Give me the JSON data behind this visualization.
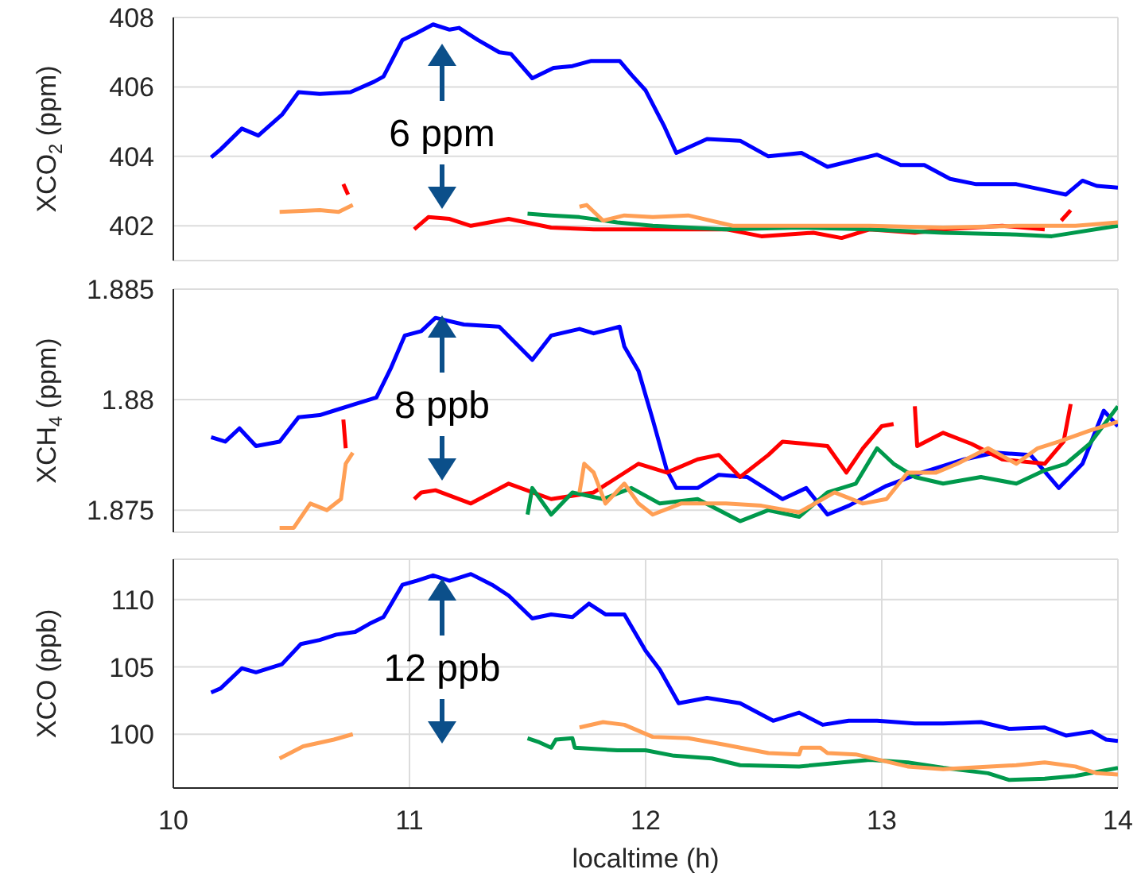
{
  "chart_data": [
    {
      "type": "line",
      "ylabel": "XCO$_{2}$ (ppm)",
      "xlim": [
        10,
        14
      ],
      "xticks": [
        10,
        11,
        12,
        13,
        14
      ],
      "ylim": [
        401,
        408
      ],
      "yticks": [
        402,
        404,
        406,
        408
      ],
      "grid": true,
      "tick_labels": "y",
      "annotations": [
        "6 ppm"
      ],
      "series": [
        {
          "color": "#0000ff",
          "x": [
            10.16,
            10.2,
            10.29,
            10.36,
            10.46,
            10.53,
            10.62,
            10.75,
            10.85,
            10.89,
            10.97,
            11.03,
            11.1,
            11.17,
            11.21,
            11.29,
            11.38,
            11.43,
            11.52,
            11.61,
            11.69,
            11.77,
            11.89,
            11.94,
            12.0,
            12.08,
            12.13,
            12.26,
            12.4,
            12.52,
            12.66,
            12.77,
            12.98,
            13.08,
            13.18,
            13.29,
            13.4,
            13.57,
            13.71,
            13.78,
            13.85,
            13.91,
            14.0
          ],
          "values": [
            403.97,
            404.2,
            404.8,
            404.6,
            405.2,
            405.85,
            405.8,
            405.85,
            406.15,
            406.3,
            407.35,
            407.55,
            407.8,
            407.65,
            407.7,
            407.35,
            407.0,
            406.95,
            406.25,
            406.55,
            406.6,
            406.75,
            406.75,
            406.35,
            405.9,
            404.85,
            404.1,
            404.5,
            404.45,
            404.0,
            404.1,
            403.7,
            404.05,
            403.75,
            403.75,
            403.35,
            403.2,
            403.2,
            403.0,
            402.9,
            403.3,
            403.15,
            403.1
          ]
        },
        {
          "color": "#ff0000",
          "x": [
            10.72,
            10.74,
            10.9,
            11.02,
            11.08,
            11.17,
            11.26,
            11.42,
            11.6,
            11.78,
            12.03,
            12.34,
            12.49,
            12.71,
            12.83,
            12.95,
            13.14,
            13.26,
            13.51,
            13.69,
            13.73,
            13.76,
            13.8
          ],
          "values": [
            403.2,
            402.9,
            null,
            401.9,
            402.25,
            402.2,
            402.0,
            402.2,
            401.95,
            401.9,
            401.9,
            401.9,
            401.7,
            401.8,
            401.65,
            401.9,
            401.8,
            401.9,
            402.0,
            401.9,
            null,
            402.15,
            402.45
          ]
        },
        {
          "color": "#00994c",
          "x": [
            11.5,
            11.6,
            11.72,
            11.88,
            12.03,
            12.34,
            12.65,
            12.95,
            13.26,
            13.57,
            13.72,
            14.0
          ],
          "values": [
            402.35,
            402.3,
            402.25,
            402.1,
            402.0,
            401.9,
            401.95,
            401.9,
            401.8,
            401.75,
            401.7,
            402.0
          ]
        },
        {
          "color": "#ff9f55",
          "x": [
            10.45,
            10.62,
            10.7,
            10.76,
            11.2,
            11.72,
            11.75,
            11.82,
            11.91,
            12.03,
            12.18,
            12.37,
            12.65,
            12.95,
            13.26,
            13.57,
            13.82,
            14.0
          ],
          "values": [
            402.4,
            402.45,
            402.4,
            402.6,
            null,
            402.55,
            402.6,
            402.15,
            402.3,
            402.25,
            402.3,
            402.0,
            402.0,
            402.0,
            401.95,
            402.0,
            402.0,
            402.1
          ]
        }
      ]
    },
    {
      "type": "line",
      "ylabel": "XCH$_{4}$ (ppm)",
      "xlim": [
        10,
        14
      ],
      "xticks": [
        10,
        11,
        12,
        13,
        14
      ],
      "ylim": [
        1.874,
        1.885
      ],
      "yticks": [
        1.875,
        1.88,
        1.885
      ],
      "grid": true,
      "tick_labels": "y",
      "annotations": [
        "8 ppb"
      ],
      "series": [
        {
          "color": "#0000ff",
          "x": [
            10.16,
            10.22,
            10.28,
            10.35,
            10.45,
            10.53,
            10.62,
            10.68,
            10.77,
            10.86,
            10.92,
            10.98,
            11.05,
            11.11,
            11.23,
            11.38,
            11.52,
            11.6,
            11.72,
            11.78,
            11.89,
            11.91,
            11.97,
            12.03,
            12.09,
            12.13,
            12.22,
            12.31,
            12.43,
            12.58,
            12.68,
            12.77,
            12.86,
            13.02,
            13.17,
            13.35,
            13.48,
            13.63,
            13.75,
            13.85,
            13.94,
            14.0
          ],
          "values": [
            1.8783,
            1.8781,
            1.8787,
            1.8779,
            1.8781,
            1.8792,
            1.8793,
            1.8795,
            1.8798,
            1.8801,
            1.8814,
            1.8829,
            1.8831,
            1.8837,
            1.8834,
            1.8833,
            1.8818,
            1.8829,
            1.8832,
            1.883,
            1.8833,
            1.8824,
            1.8813,
            1.8791,
            1.8768,
            1.876,
            1.876,
            1.8766,
            1.8765,
            1.8755,
            1.876,
            1.8748,
            1.8752,
            1.8761,
            1.8767,
            1.8773,
            1.8776,
            1.8775,
            1.876,
            1.8771,
            1.8795,
            1.8788
          ]
        },
        {
          "color": "#ff0000",
          "x": [
            10.72,
            10.73,
            10.9,
            11.02,
            11.05,
            11.11,
            11.26,
            11.42,
            11.6,
            11.78,
            11.97,
            12.09,
            12.22,
            12.31,
            12.4,
            12.52,
            12.58,
            12.68,
            12.77,
            12.85,
            12.92,
            13.0,
            13.05,
            13.1,
            13.14,
            13.15,
            13.26,
            13.38,
            13.51,
            13.69,
            13.77,
            13.8
          ],
          "values": [
            1.8791,
            1.8778,
            null,
            1.8755,
            1.8758,
            1.8759,
            1.8753,
            1.8762,
            1.8755,
            1.8758,
            1.8771,
            1.8767,
            1.8773,
            1.8775,
            1.8765,
            1.8775,
            1.8781,
            1.878,
            1.8779,
            1.8767,
            1.8778,
            1.8788,
            1.8789,
            null,
            1.8797,
            1.8779,
            1.8785,
            1.878,
            1.8773,
            1.8771,
            1.8781,
            1.8798
          ]
        },
        {
          "color": "#00994c",
          "x": [
            11.5,
            11.52,
            11.6,
            11.69,
            11.82,
            11.94,
            12.06,
            12.22,
            12.4,
            12.52,
            12.65,
            12.77,
            12.89,
            12.98,
            13.05,
            13.14,
            13.26,
            13.42,
            13.57,
            13.69,
            13.78,
            13.88,
            14.0
          ],
          "values": [
            1.8748,
            1.876,
            1.8748,
            1.8758,
            1.8755,
            1.876,
            1.8753,
            1.8755,
            1.8745,
            1.875,
            1.8747,
            1.8758,
            1.8762,
            1.8778,
            1.8771,
            1.8765,
            1.8762,
            1.8765,
            1.8762,
            1.8768,
            1.8771,
            1.878,
            1.8797
          ]
        },
        {
          "color": "#ff9f55",
          "x": [
            10.45,
            10.51,
            10.58,
            10.65,
            10.71,
            10.73,
            10.76,
            11.2,
            11.72,
            11.74,
            11.78,
            11.83,
            11.91,
            11.97,
            12.03,
            12.15,
            12.34,
            12.49,
            12.65,
            12.8,
            12.92,
            13.02,
            13.11,
            13.23,
            13.32,
            13.45,
            13.57,
            13.66,
            13.75,
            13.88,
            14.0
          ],
          "values": [
            1.8742,
            1.8742,
            1.8753,
            1.875,
            1.8755,
            1.8771,
            1.8776,
            null,
            1.8758,
            1.8771,
            1.8767,
            1.8753,
            1.8762,
            1.8753,
            1.8748,
            1.8753,
            1.8753,
            1.8752,
            1.8749,
            1.8758,
            1.8753,
            1.8755,
            1.8767,
            1.8767,
            1.8771,
            1.8778,
            1.8771,
            1.8778,
            1.8781,
            1.8786,
            1.879
          ]
        }
      ]
    },
    {
      "type": "line",
      "ylabel": "XCO (ppb)",
      "xlabel": "localtime (h)",
      "xlim": [
        10,
        14
      ],
      "xticks": [
        10,
        11,
        12,
        13,
        14
      ],
      "ylim": [
        96,
        113
      ],
      "yticks": [
        100,
        105,
        110
      ],
      "grid": true,
      "annotations": [
        "12 ppb"
      ],
      "series": [
        {
          "color": "#0000ff",
          "x": [
            10.16,
            10.2,
            10.29,
            10.35,
            10.46,
            10.54,
            10.62,
            10.69,
            10.77,
            10.83,
            10.89,
            10.97,
            11.03,
            11.1,
            11.17,
            11.26,
            11.35,
            11.42,
            11.52,
            11.6,
            11.69,
            11.76,
            11.83,
            11.91,
            12.0,
            12.06,
            12.14,
            12.26,
            12.4,
            12.54,
            12.65,
            12.75,
            12.86,
            12.98,
            13.14,
            13.26,
            13.42,
            13.54,
            13.69,
            13.78,
            13.89,
            13.95,
            14.0
          ],
          "values": [
            103.1,
            103.4,
            104.9,
            104.6,
            105.2,
            106.7,
            107.0,
            107.4,
            107.6,
            108.2,
            108.7,
            111.1,
            111.4,
            111.8,
            111.4,
            111.9,
            111.1,
            110.3,
            108.6,
            108.9,
            108.7,
            109.7,
            108.9,
            108.9,
            106.2,
            104.8,
            102.3,
            102.7,
            102.3,
            101.0,
            101.6,
            100.7,
            101.0,
            101.0,
            100.8,
            100.8,
            100.9,
            100.4,
            100.5,
            99.9,
            100.2,
            99.6,
            99.5
          ]
        },
        {
          "color": "#00994c",
          "x": [
            11.5,
            11.55,
            11.6,
            11.62,
            11.69,
            11.7,
            11.88,
            12.0,
            12.12,
            12.28,
            12.4,
            12.65,
            12.95,
            13.11,
            13.26,
            13.45,
            13.54,
            13.69,
            13.82,
            14.0
          ],
          "values": [
            99.7,
            99.4,
            99.0,
            99.6,
            99.7,
            99.0,
            98.8,
            98.8,
            98.4,
            98.2,
            97.7,
            97.6,
            98.1,
            97.9,
            97.5,
            97.1,
            96.6,
            96.7,
            96.9,
            97.5
          ]
        },
        {
          "color": "#ff9f55",
          "x": [
            10.45,
            10.55,
            10.68,
            10.76,
            11.2,
            11.72,
            11.82,
            11.91,
            12.03,
            12.18,
            12.34,
            12.52,
            12.65,
            12.66,
            12.74,
            12.77,
            12.89,
            13.11,
            13.26,
            13.57,
            13.69,
            13.82,
            13.91,
            14.0
          ],
          "values": [
            98.2,
            99.1,
            99.6,
            100.0,
            null,
            100.5,
            100.9,
            100.7,
            99.8,
            99.7,
            99.2,
            98.6,
            98.5,
            99.0,
            99.0,
            98.6,
            98.5,
            97.6,
            97.4,
            97.7,
            97.9,
            97.6,
            97.1,
            97.0
          ]
        }
      ]
    }
  ]
}
